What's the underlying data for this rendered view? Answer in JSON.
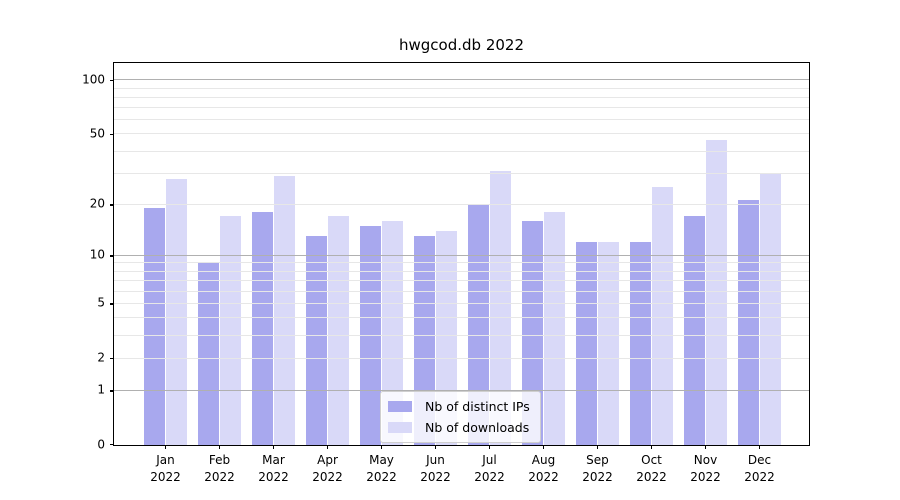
{
  "title": "hwgcod.db 2022",
  "chart_data": {
    "type": "bar",
    "title": "hwgcod.db 2022",
    "categories": [
      "Jan",
      "Feb",
      "Mar",
      "Apr",
      "May",
      "Jun",
      "Jul",
      "Aug",
      "Sep",
      "Oct",
      "Nov",
      "Dec"
    ],
    "category_year": "2022",
    "series": [
      {
        "name": "Nb of distinct IPs",
        "color": "#a8a8ee",
        "values": [
          19,
          9,
          18,
          13,
          15,
          13,
          20,
          16,
          12,
          12,
          17,
          21
        ]
      },
      {
        "name": "Nb of downloads",
        "color": "#d9d9f8",
        "values": [
          28,
          17,
          29,
          17,
          16,
          14,
          31,
          18,
          12,
          25,
          46,
          30
        ]
      }
    ],
    "yscale": "log1p",
    "ylim": [
      0,
      124
    ],
    "y_tick_labels": [
      "100",
      "50",
      "20",
      "10",
      "5",
      "2",
      "1",
      "0"
    ],
    "y_tick_values": [
      100,
      50,
      20,
      10,
      5,
      2,
      1,
      0
    ],
    "y_major_gridlines": [
      1,
      10,
      100
    ],
    "y_minor_gridlines": [
      2,
      3,
      4,
      5,
      6,
      7,
      8,
      9,
      20,
      30,
      40,
      50,
      60,
      70,
      80,
      90
    ],
    "legend_position": "lower center",
    "grid": true
  },
  "colors": {
    "background": "#ffffff",
    "axis": "#000000",
    "bar_distinct_ips": "#a8a8ee",
    "bar_downloads": "#d9d9f8",
    "major_grid": "#b0b0b0",
    "minor_grid": "#e7e7e7",
    "legend_border": "#cfcfcf",
    "text": "#000000"
  }
}
